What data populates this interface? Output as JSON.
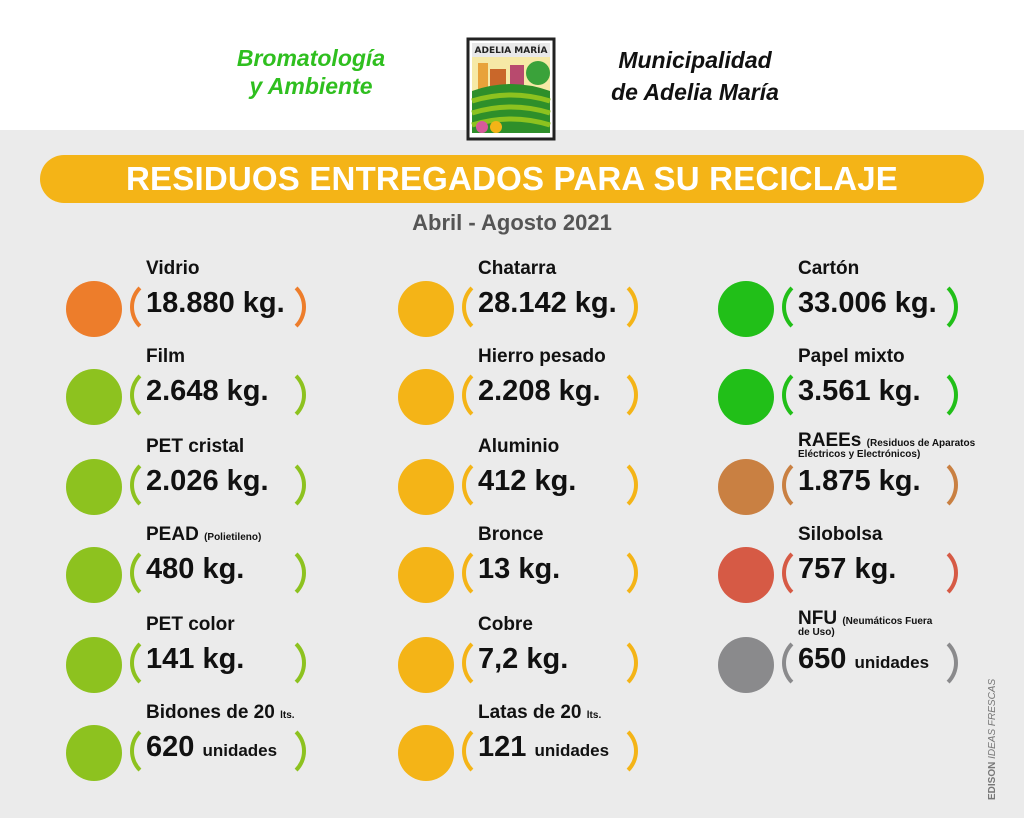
{
  "header": {
    "dept_line1": "Bromatología",
    "dept_line2": "y Ambiente",
    "muni_line1": "Municipalidad",
    "muni_line2": "de Adelia María",
    "crest_text": "ADELIA MARÍA"
  },
  "title": "RESIDUOS ENTREGADOS PARA SU RECICLAJE",
  "subtitle": "Abril - Agosto 2021",
  "colors": {
    "orange": "#ed7d2b",
    "lime": "#8dc21f",
    "yellow": "#f4b417",
    "green": "#21bf18",
    "brown": "#c98042",
    "red": "#d65a45",
    "gray": "#8a8a8c",
    "banner": "#f4b417"
  },
  "col1": [
    {
      "label": "Vidrio",
      "value": "18.880 kg.",
      "color": "#ed7d2b"
    },
    {
      "label": "Film",
      "value": "2.648 kg.",
      "color": "#8dc21f"
    },
    {
      "label": "PET cristal",
      "value": "2.026 kg.",
      "color": "#8dc21f"
    },
    {
      "label": "PEAD",
      "note": "(Polietileno)",
      "value": "480 kg.",
      "color": "#8dc21f"
    },
    {
      "label": "PET color",
      "value": "141 kg.",
      "color": "#8dc21f"
    },
    {
      "label": "Bidones de 20",
      "note": "lts.",
      "value": "620",
      "unit": "unidades",
      "color": "#8dc21f"
    }
  ],
  "col2": [
    {
      "label": "Chatarra",
      "value": "28.142 kg.",
      "color": "#f4b417"
    },
    {
      "label": "Hierro pesado",
      "value": "2.208 kg.",
      "color": "#f4b417"
    },
    {
      "label": "Aluminio",
      "value": "412 kg.",
      "color": "#f4b417"
    },
    {
      "label": "Bronce",
      "value": "13 kg.",
      "color": "#f4b417"
    },
    {
      "label": "Cobre",
      "value": "7,2 kg.",
      "color": "#f4b417"
    },
    {
      "label": "Latas de 20",
      "note": "lts.",
      "value": "121",
      "unit": "unidades",
      "color": "#f4b417"
    }
  ],
  "col3": [
    {
      "label": "Cartón",
      "value": "33.006 kg.",
      "color": "#21bf18"
    },
    {
      "label": "Papel mixto",
      "value": "3.561 kg.",
      "color": "#21bf18"
    },
    {
      "label": "RAEEs",
      "note": "(Residuos de Aparatos",
      "note2": "Eléctricos y Electrónicos)",
      "value": "1.875 kg.",
      "color": "#c98042"
    },
    {
      "label": "Silobolsa",
      "value": "757 kg.",
      "color": "#d65a45"
    },
    {
      "label": "NFU",
      "note": "(Neumáticos Fuera",
      "note2": "de Uso)",
      "value": "650",
      "unit": "unidades",
      "color": "#8a8a8c"
    }
  ],
  "credit_bold": "EDISON",
  "credit_rest": "IDEAS FRESCAS"
}
